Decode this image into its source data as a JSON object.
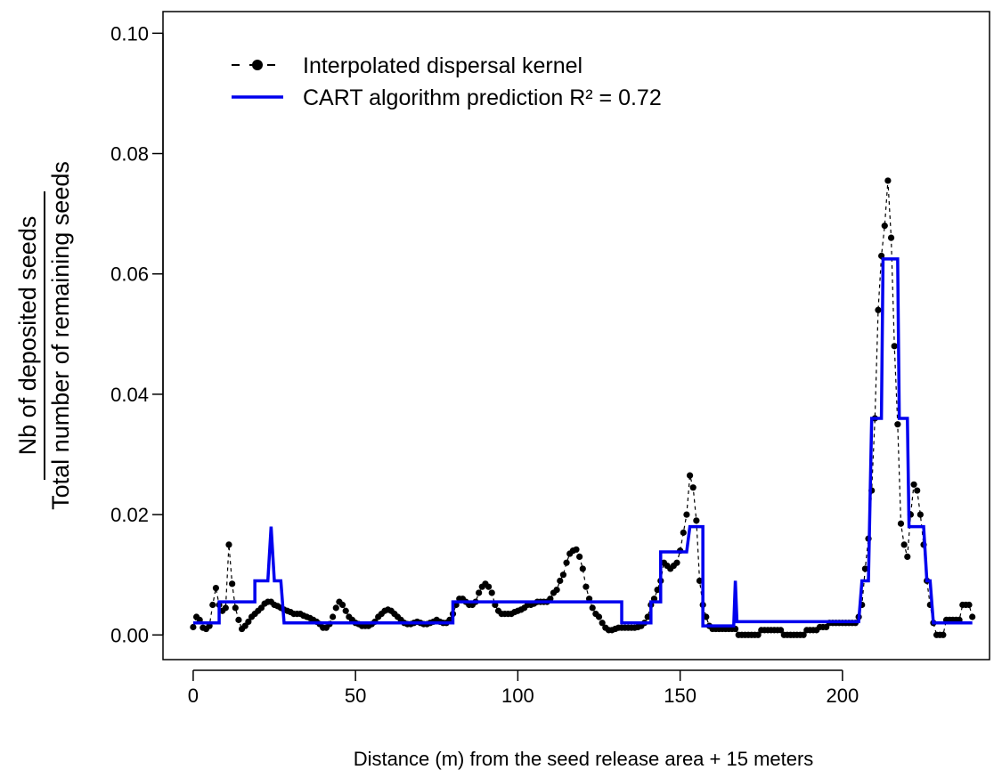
{
  "chart_data": {
    "type": "line",
    "xlabel": "Distance (m) from the seed release area + 15 meters",
    "ylabel_numerator": "Nb of deposited seeds",
    "ylabel_denominator": "Total number of remaining seeds",
    "xlim": [
      -9.3,
      245.3
    ],
    "ylim": [
      -0.0041,
      0.1036
    ],
    "xticks": [
      0,
      50,
      100,
      150,
      200
    ],
    "yticks": [
      {
        "value": 0,
        "label": "0.00"
      },
      {
        "value": 0.02,
        "label": "0.02"
      },
      {
        "value": 0.04,
        "label": "0.04"
      },
      {
        "value": 0.06,
        "label": "0.06"
      },
      {
        "value": 0.08,
        "label": "0.08"
      },
      {
        "value": 0.1,
        "label": "0.10"
      }
    ],
    "legend": "top-left",
    "series": [
      {
        "name": "Interpolated dispersal kernel",
        "color": "#000000",
        "style": "dashed-points",
        "x": [
          0,
          1,
          2,
          3,
          4,
          5,
          6,
          7,
          8,
          9,
          10,
          11,
          12,
          13,
          14,
          15,
          16,
          17,
          18,
          19,
          20,
          21,
          22,
          23,
          24,
          25,
          26,
          27,
          28,
          29,
          30,
          31,
          32,
          33,
          34,
          35,
          36,
          37,
          38,
          39,
          40,
          41,
          42,
          43,
          44,
          45,
          46,
          47,
          48,
          49,
          50,
          51,
          52,
          53,
          54,
          55,
          56,
          57,
          58,
          59,
          60,
          61,
          62,
          63,
          64,
          65,
          66,
          67,
          68,
          69,
          70,
          71,
          72,
          73,
          74,
          75,
          76,
          77,
          78,
          79,
          80,
          81,
          82,
          83,
          84,
          85,
          86,
          87,
          88,
          89,
          90,
          91,
          92,
          93,
          94,
          95,
          96,
          97,
          98,
          99,
          100,
          101,
          102,
          103,
          104,
          105,
          106,
          107,
          108,
          109,
          110,
          111,
          112,
          113,
          114,
          115,
          116,
          117,
          118,
          119,
          120,
          121,
          122,
          123,
          124,
          125,
          126,
          127,
          128,
          129,
          130,
          131,
          132,
          133,
          134,
          135,
          136,
          137,
          138,
          139,
          140,
          141,
          142,
          143,
          144,
          145,
          146,
          147,
          148,
          149,
          150,
          151,
          152,
          153,
          154,
          155,
          156,
          157,
          158,
          159,
          160,
          161,
          162,
          163,
          164,
          165,
          166,
          167,
          168,
          169,
          170,
          171,
          172,
          173,
          174,
          175,
          176,
          177,
          178,
          179,
          180,
          181,
          182,
          183,
          184,
          185,
          186,
          187,
          188,
          189,
          190,
          191,
          192,
          193,
          194,
          195,
          196,
          197,
          198,
          199,
          200,
          201,
          202,
          203,
          204,
          205,
          206,
          207,
          208,
          209,
          210,
          211,
          212,
          213,
          214,
          215,
          216,
          217,
          218,
          219,
          220,
          221,
          222,
          223,
          224,
          225,
          226,
          227,
          228,
          229,
          230,
          231,
          232,
          233,
          234,
          235,
          236,
          237,
          238,
          239,
          240
        ],
        "values": [
          0.0013,
          0.003,
          0.0025,
          0.0012,
          0.001,
          0.0015,
          0.005,
          0.0078,
          0.005,
          0.004,
          0.0045,
          0.015,
          0.0085,
          0.0045,
          0.0025,
          0.001,
          0.0015,
          0.0022,
          0.003,
          0.0035,
          0.004,
          0.0045,
          0.0052,
          0.0055,
          0.0055,
          0.005,
          0.0048,
          0.0045,
          0.0042,
          0.004,
          0.0038,
          0.0035,
          0.0035,
          0.0035,
          0.0032,
          0.003,
          0.0028,
          0.0025,
          0.0022,
          0.0018,
          0.0012,
          0.0012,
          0.0018,
          0.003,
          0.0045,
          0.0055,
          0.005,
          0.004,
          0.003,
          0.0025,
          0.002,
          0.0018,
          0.0015,
          0.0015,
          0.0015,
          0.0018,
          0.0022,
          0.003,
          0.0035,
          0.004,
          0.0042,
          0.004,
          0.0035,
          0.003,
          0.0025,
          0.002,
          0.0018,
          0.0018,
          0.002,
          0.0022,
          0.002,
          0.0018,
          0.0018,
          0.002,
          0.0022,
          0.0025,
          0.0022,
          0.002,
          0.002,
          0.0025,
          0.0035,
          0.005,
          0.006,
          0.006,
          0.0055,
          0.005,
          0.005,
          0.0055,
          0.007,
          0.008,
          0.0085,
          0.008,
          0.007,
          0.005,
          0.004,
          0.0035,
          0.0035,
          0.0035,
          0.0035,
          0.0038,
          0.004,
          0.0042,
          0.0045,
          0.005,
          0.005,
          0.0052,
          0.0055,
          0.0055,
          0.0055,
          0.0055,
          0.006,
          0.007,
          0.0075,
          0.009,
          0.01,
          0.012,
          0.0135,
          0.014,
          0.0142,
          0.013,
          0.011,
          0.008,
          0.006,
          0.0045,
          0.0035,
          0.003,
          0.002,
          0.0012,
          0.0008,
          0.0008,
          0.001,
          0.0012,
          0.0012,
          0.0012,
          0.0012,
          0.0012,
          0.0012,
          0.0013,
          0.0015,
          0.002,
          0.003,
          0.005,
          0.006,
          0.0075,
          0.009,
          0.012,
          0.0115,
          0.011,
          0.0115,
          0.012,
          0.014,
          0.017,
          0.02,
          0.0265,
          0.0245,
          0.019,
          0.009,
          0.005,
          0.003,
          0.0015,
          0.001,
          0.001,
          0.001,
          0.001,
          0.001,
          0.001,
          0.001,
          0.001,
          0,
          0,
          0,
          0,
          0,
          0,
          0,
          0.0008,
          0.0008,
          0.0008,
          0.0008,
          0.0008,
          0.0008,
          0.0008,
          0,
          0,
          0,
          0,
          0,
          0,
          0,
          0.0008,
          0.0008,
          0.0008,
          0.0008,
          0.0013,
          0.0013,
          0.0013,
          0.002,
          0.002,
          0.002,
          0.002,
          0.002,
          0.002,
          0.002,
          0.002,
          0.002,
          0.003,
          0.005,
          0.011,
          0.016,
          0.024,
          0.036,
          0.054,
          0.063,
          0.068,
          0.0755,
          0.066,
          0.048,
          0.035,
          0.0185,
          0.015,
          0.013,
          0.02,
          0.025,
          0.024,
          0.02,
          0.015,
          0.009,
          0.005,
          0.002,
          0,
          0,
          0,
          0.0025,
          0.0025,
          0.0025,
          0.0025,
          0.0025,
          0.005,
          0.005,
          0.005,
          0.003
        ]
      },
      {
        "name": "CART algorithm prediction R² = 0.72",
        "color": "#0000ee",
        "style": "solid",
        "x": [
          0,
          8,
          8,
          19,
          19,
          23,
          24,
          25,
          27,
          28,
          80,
          80,
          132,
          132,
          141,
          141,
          144,
          144,
          152,
          153,
          157,
          157,
          166.5,
          167,
          167.5,
          205,
          206,
          208,
          209,
          212,
          212.5,
          217,
          217.5,
          220,
          220.5,
          225,
          226,
          227,
          228,
          240
        ],
        "values": [
          0.002,
          0.002,
          0.0055,
          0.0055,
          0.009,
          0.009,
          0.018,
          0.009,
          0.009,
          0.002,
          0.002,
          0.0055,
          0.0055,
          0.002,
          0.002,
          0.0055,
          0.0055,
          0.0138,
          0.0138,
          0.018,
          0.018,
          0.0015,
          0.0015,
          0.009,
          0.0022,
          0.0022,
          0.009,
          0.009,
          0.036,
          0.036,
          0.0625,
          0.0625,
          0.036,
          0.036,
          0.018,
          0.018,
          0.009,
          0.009,
          0.002,
          0.002
        ]
      }
    ]
  }
}
